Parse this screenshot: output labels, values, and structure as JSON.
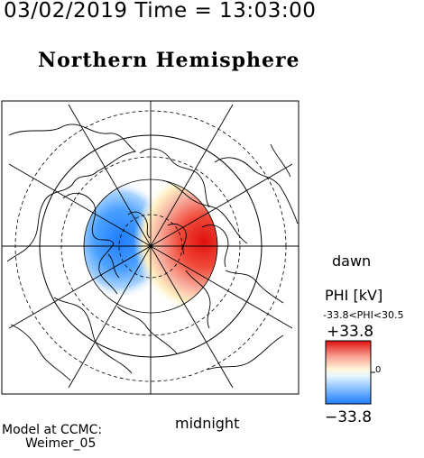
{
  "header": {
    "datetime": "03/02/2019 Time = 13:03:00",
    "title": "Northern Hemisphere"
  },
  "map": {
    "projection": "polar stereographic, geomagnetic north pole at center",
    "orientation": {
      "right": "dawn",
      "bottom": "midnight"
    },
    "grid": {
      "latitude_circles": "dashed",
      "meridians": "solid, every 30 degrees"
    },
    "potential_pattern": {
      "dusk_cell": {
        "sign": "negative",
        "color": "#2f86ff"
      },
      "dawn_cell": {
        "sign": "positive",
        "color": "#e01010"
      }
    }
  },
  "colorbar": {
    "title": "PHI [kV]",
    "range_text": "-33.8<PHI<30.5",
    "max_label": "+33.8",
    "min_label": "−33.8",
    "zero_label": "0",
    "colors": {
      "max": "#e01010",
      "mid": "#ffffff",
      "min": "#1e7cff"
    }
  },
  "footer": {
    "model_line1": "Model at CCMC:",
    "model_line2": "Weimer_05"
  }
}
